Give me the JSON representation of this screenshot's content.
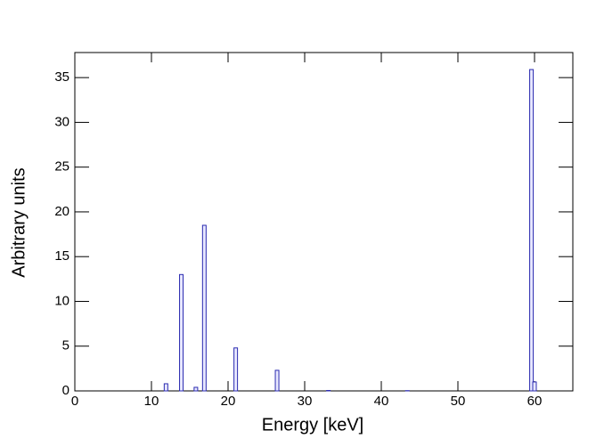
{
  "chart_data": {
    "type": "bar",
    "x_label": "Energy [keV]",
    "y_label": "Arbitrary units",
    "x": [
      11.9,
      13.9,
      15.8,
      16.9,
      21.0,
      26.4,
      33.1,
      43.4,
      59.6,
      60.0
    ],
    "values": [
      0.8,
      13,
      0.4,
      18.5,
      4.8,
      2.3,
      0.05,
      0.03,
      35.9,
      1.0
    ],
    "color": "#2b2bb0",
    "xlim": [
      0,
      65
    ],
    "xticks": [
      0,
      10,
      20,
      30,
      40,
      50,
      60
    ],
    "ylim": [
      0,
      37.8
    ],
    "yticks": [
      0,
      5,
      10,
      15,
      20,
      25,
      30,
      35
    ]
  }
}
